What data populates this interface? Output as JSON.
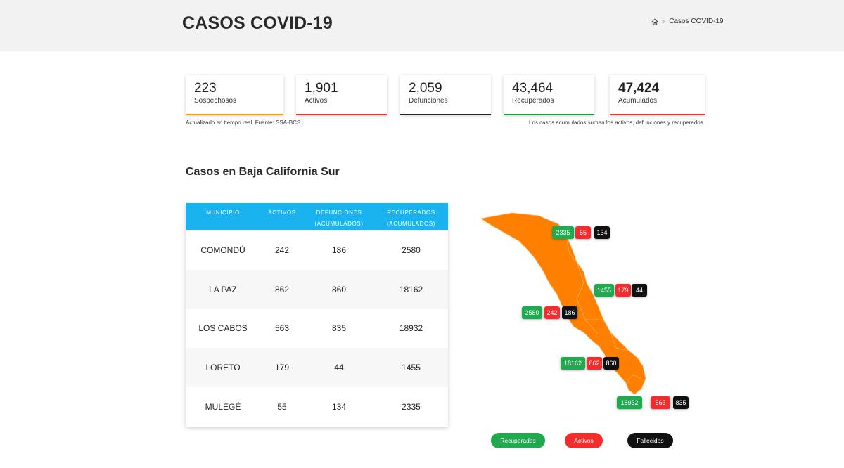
{
  "header": {
    "title": "CASOS COVID-19",
    "breadcrumb_current": "Casos COVID-19",
    "breadcrumb_sep": ">"
  },
  "stats": [
    {
      "value": "223",
      "label": "Sospechosos",
      "bar_color": "#f39c12"
    },
    {
      "value": "1,901",
      "label": "Activos",
      "bar_color": "#e53935"
    },
    {
      "value": "2,059",
      "label": "Defunciones",
      "bar_color": "#222222"
    },
    {
      "value": "43,464",
      "label": "Recuperados",
      "bar_color": "#22a045"
    },
    {
      "value": "47,424",
      "label": "Acumulados",
      "bar_color": "#e53935"
    }
  ],
  "notes": {
    "left": "Actualizado en tiempo real. Fuente: SSA-BCS.",
    "right": "Los casos acumulados suman los activos, defunciones y recuperados."
  },
  "section_title": "Casos en Baja California Sur",
  "table": {
    "headers": [
      "MUNICIPIO",
      "ACTIVOS",
      "DEFUNCIONES",
      "(ACUMULADOS)",
      "RECUPERADOS",
      "(ACUMULADOS)"
    ],
    "rows": [
      {
        "municipio": "COMONDÚ",
        "activos": "242",
        "defunciones": "186",
        "recuperados": "2580"
      },
      {
        "municipio": "LA PAZ",
        "activos": "862",
        "defunciones": "860",
        "recuperados": "18162"
      },
      {
        "municipio": "LOS CABOS",
        "activos": "563",
        "defunciones": "835",
        "recuperados": "18932"
      },
      {
        "municipio": "LORETO",
        "activos": "179",
        "defunciones": "44",
        "recuperados": "1455"
      },
      {
        "municipio": "MULEGÉ",
        "activos": "55",
        "defunciones": "134",
        "recuperados": "2335"
      }
    ]
  },
  "map": {
    "fill_color": "#ff8000",
    "labels": {
      "mulege": {
        "recuperados": "2335",
        "activos": "55",
        "fallecidos": "134"
      },
      "loreto": {
        "recuperados": "1455",
        "activos": "179",
        "fallecidos": "44"
      },
      "comondu": {
        "recuperados": "2580",
        "activos": "242",
        "fallecidos": "186"
      },
      "lapaz": {
        "recuperados": "18162",
        "activos": "862",
        "fallecidos": "860"
      },
      "loscabos": {
        "recuperados": "18932",
        "activos": "563",
        "fallecidos": "835"
      }
    }
  },
  "legend": {
    "recuperados": "Recuperados",
    "activos": "Activos",
    "fallecidos": "Fallecidos"
  },
  "colors": {
    "header_bg": "#f2f2f2",
    "table_header": "#1ab3f0",
    "green": "#1faa4f",
    "red": "#f52c2c",
    "black": "#111111"
  }
}
